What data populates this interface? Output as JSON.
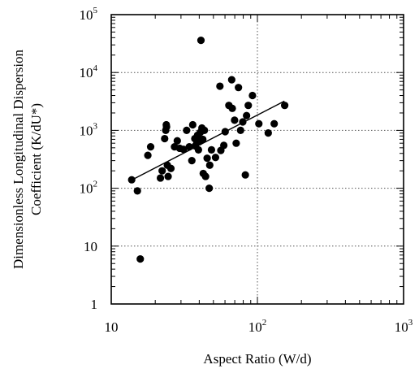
{
  "chart_data": {
    "type": "scatter",
    "xlabel": "Aspect Ratio (W/d)",
    "ylabel_lines": [
      "Dimensionless Longitudinal Dispersion",
      "Coefficient (K/dU*)"
    ],
    "x_scale": "log",
    "y_scale": "log",
    "xlim": [
      10,
      1000
    ],
    "ylim": [
      1,
      100000
    ],
    "grid": true,
    "x_ticks": [
      {
        "value": 10,
        "base": "10",
        "exp": ""
      },
      {
        "value": 100,
        "base": "10",
        "exp": "2"
      },
      {
        "value": 1000,
        "base": "10",
        "exp": "3"
      }
    ],
    "y_ticks": [
      {
        "value": 1,
        "base": "1",
        "exp": ""
      },
      {
        "value": 10,
        "base": "10",
        "exp": ""
      },
      {
        "value": 100,
        "base": "10",
        "exp": "2"
      },
      {
        "value": 1000,
        "base": "10",
        "exp": "3"
      },
      {
        "value": 10000,
        "base": "10",
        "exp": "4"
      },
      {
        "value": 100000,
        "base": "10",
        "exp": "5"
      }
    ],
    "points": [
      {
        "x": 13.8,
        "y": 140
      },
      {
        "x": 15.1,
        "y": 90
      },
      {
        "x": 15.8,
        "y": 6
      },
      {
        "x": 17.8,
        "y": 370
      },
      {
        "x": 18.6,
        "y": 520
      },
      {
        "x": 21.7,
        "y": 150
      },
      {
        "x": 22.3,
        "y": 200
      },
      {
        "x": 23.2,
        "y": 720
      },
      {
        "x": 23.6,
        "y": 1000
      },
      {
        "x": 23.8,
        "y": 1250
      },
      {
        "x": 23.9,
        "y": 1150
      },
      {
        "x": 24.2,
        "y": 250
      },
      {
        "x": 24.5,
        "y": 160
      },
      {
        "x": 25.6,
        "y": 220
      },
      {
        "x": 27.1,
        "y": 520
      },
      {
        "x": 28.3,
        "y": 660
      },
      {
        "x": 29.4,
        "y": 490
      },
      {
        "x": 31.2,
        "y": 470
      },
      {
        "x": 32.8,
        "y": 1000
      },
      {
        "x": 34.2,
        "y": 520
      },
      {
        "x": 35.6,
        "y": 300
      },
      {
        "x": 36.1,
        "y": 1250
      },
      {
        "x": 37.3,
        "y": 720
      },
      {
        "x": 37.6,
        "y": 540
      },
      {
        "x": 38.4,
        "y": 650
      },
      {
        "x": 38.9,
        "y": 820
      },
      {
        "x": 39.5,
        "y": 460
      },
      {
        "x": 40.1,
        "y": 640
      },
      {
        "x": 40.6,
        "y": 920
      },
      {
        "x": 41.1,
        "y": 36000
      },
      {
        "x": 41.7,
        "y": 1100
      },
      {
        "x": 42.3,
        "y": 700
      },
      {
        "x": 42.6,
        "y": 180
      },
      {
        "x": 43.4,
        "y": 1000
      },
      {
        "x": 44.2,
        "y": 160
      },
      {
        "x": 45.3,
        "y": 330
      },
      {
        "x": 46.8,
        "y": 100
      },
      {
        "x": 47.2,
        "y": 250
      },
      {
        "x": 48.5,
        "y": 460
      },
      {
        "x": 51.7,
        "y": 340
      },
      {
        "x": 55.4,
        "y": 5800
      },
      {
        "x": 56.2,
        "y": 450
      },
      {
        "x": 58.9,
        "y": 550
      },
      {
        "x": 60.2,
        "y": 950
      },
      {
        "x": 63.8,
        "y": 2700
      },
      {
        "x": 66.7,
        "y": 7500
      },
      {
        "x": 67.3,
        "y": 2400
      },
      {
        "x": 69.8,
        "y": 1500
      },
      {
        "x": 71.6,
        "y": 600
      },
      {
        "x": 74.2,
        "y": 5500
      },
      {
        "x": 76.7,
        "y": 1000
      },
      {
        "x": 79.4,
        "y": 1400
      },
      {
        "x": 82.7,
        "y": 170
      },
      {
        "x": 84.3,
        "y": 1800
      },
      {
        "x": 86.6,
        "y": 2700
      },
      {
        "x": 92.5,
        "y": 4000
      },
      {
        "x": 102.3,
        "y": 1300
      },
      {
        "x": 118.6,
        "y": 900
      },
      {
        "x": 130.3,
        "y": 1300
      },
      {
        "x": 153.7,
        "y": 2700
      }
    ],
    "trend_line": {
      "x": [
        13.5,
        153.0
      ],
      "y": [
        135,
        3200
      ]
    }
  }
}
